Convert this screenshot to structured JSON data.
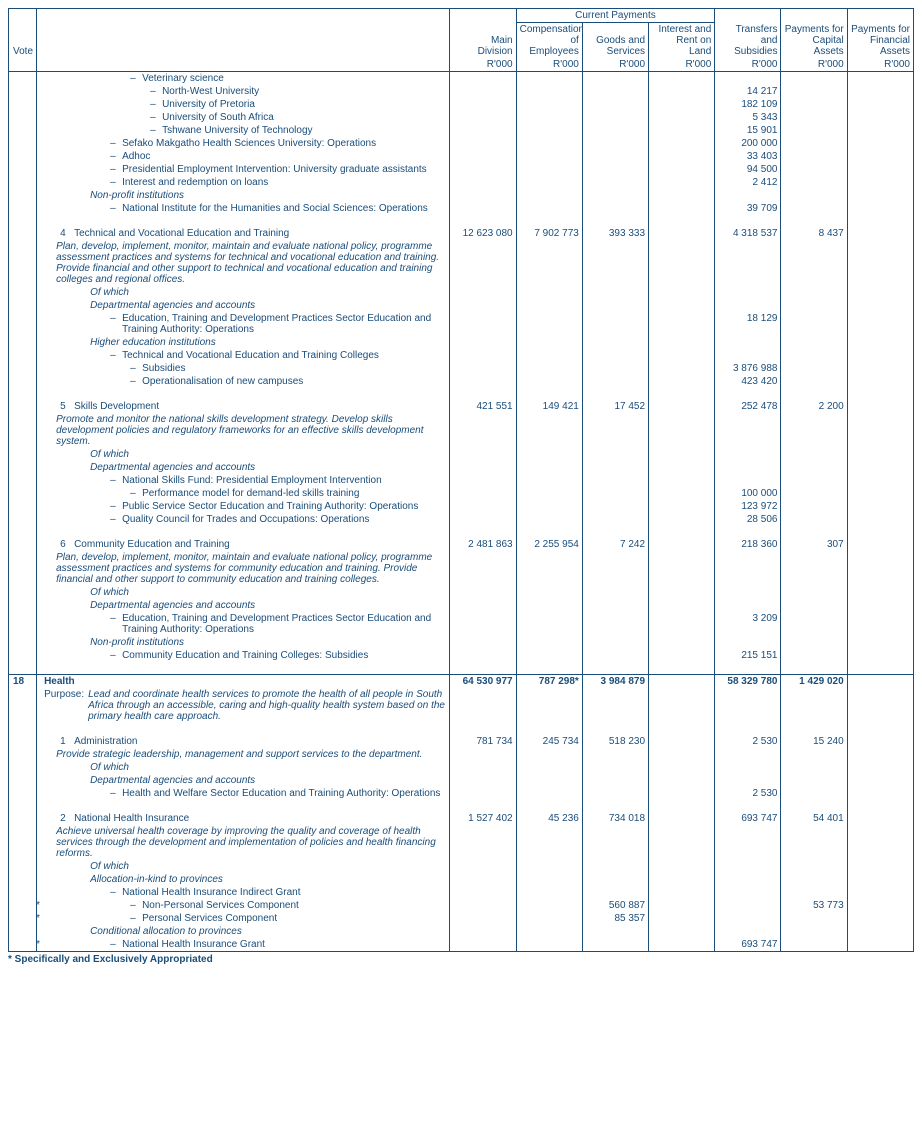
{
  "header": {
    "vote": "Vote",
    "group_current": "Current Payments",
    "main_division": "Main Division",
    "comp_emp": "Compensation of Employees",
    "goods_serv": "Goods and Services",
    "interest_rent": "Interest and Rent on Land",
    "transfers": "Transfers and Subsidies",
    "cap_assets": "Payments for Capital Assets",
    "fin_assets": "Payments for Financial Assets",
    "unit": "R'000"
  },
  "rows": [
    {
      "indent": 5,
      "dash": true,
      "text": "Veterinary science"
    },
    {
      "indent": 6,
      "dash": true,
      "text": "North-West University",
      "transfers": "14 217"
    },
    {
      "indent": 6,
      "dash": true,
      "text": "University of Pretoria",
      "transfers": "182 109"
    },
    {
      "indent": 6,
      "dash": true,
      "text": "University of South Africa",
      "transfers": "5 343"
    },
    {
      "indent": 6,
      "dash": true,
      "text": "Tshwane University of Technology",
      "transfers": "15 901"
    },
    {
      "indent": 4,
      "dash": true,
      "text": "Sefako Makgatho Health Sciences University: Operations",
      "transfers": "200 000"
    },
    {
      "indent": 4,
      "dash": true,
      "text": "Adhoc",
      "transfers": "33 403"
    },
    {
      "indent": 4,
      "dash": true,
      "text": "Presidential Employment Intervention: University graduate assistants",
      "transfers": "94 500"
    },
    {
      "indent": 4,
      "dash": true,
      "text": "Interest and redemption on loans",
      "transfers": "2 412"
    },
    {
      "indent": 3,
      "ital": true,
      "text": "Non-profit institutions"
    },
    {
      "indent": 4,
      "dash": true,
      "text": "National Institute for the Humanities and Social Sciences: Operations",
      "transfers": "39 709"
    },
    {
      "spacer": true
    },
    {
      "indent": 1,
      "prog": "4",
      "text": "Technical and Vocational Education and Training",
      "main": "12 623 080",
      "comp": "7 902 773",
      "goods": "393 333",
      "transfers": "4 318 537",
      "cap": "8 437"
    },
    {
      "indent": 2,
      "ital": true,
      "text": "Plan, develop, implement, monitor, maintain and evaluate national policy, programme assessment practices and systems for technical and vocational education and training. Provide financial and other support to technical and vocational education and training colleges and regional offices."
    },
    {
      "indent": 3,
      "ital": true,
      "text": "Of which"
    },
    {
      "indent": 3,
      "ital": true,
      "text": "Departmental agencies and accounts"
    },
    {
      "indent": 4,
      "dash": true,
      "text": "Education, Training and Development Practices Sector Education and Training Authority: Operations",
      "transfers": "18 129"
    },
    {
      "indent": 3,
      "ital": true,
      "text": "Higher education institutions"
    },
    {
      "indent": 4,
      "dash": true,
      "text": "Technical and Vocational Education and Training Colleges"
    },
    {
      "indent": 5,
      "dash": true,
      "text": "Subsidies",
      "transfers": "3 876 988"
    },
    {
      "indent": 5,
      "dash": true,
      "text": "Operationalisation of new campuses",
      "transfers": "423 420"
    },
    {
      "spacer": true
    },
    {
      "indent": 1,
      "prog": "5",
      "text": "Skills Development",
      "main": "421 551",
      "comp": "149 421",
      "goods": "17 452",
      "transfers": "252 478",
      "cap": "2 200"
    },
    {
      "indent": 2,
      "ital": true,
      "text": "Promote and monitor the national skills development strategy. Develop skills development policies and regulatory frameworks for an effective skills development system."
    },
    {
      "indent": 3,
      "ital": true,
      "text": "Of which"
    },
    {
      "indent": 3,
      "ital": true,
      "text": "Departmental agencies and accounts"
    },
    {
      "indent": 4,
      "dash": true,
      "text": "National Skills Fund: Presidential Employment Intervention"
    },
    {
      "indent": 5,
      "dash": true,
      "text": "Performance model for demand-led skills training",
      "transfers": "100 000"
    },
    {
      "indent": 4,
      "dash": true,
      "text": "Public Service Sector Education and Training Authority: Operations",
      "transfers": "123 972"
    },
    {
      "indent": 4,
      "dash": true,
      "text": "Quality Council for Trades and Occupations: Operations",
      "transfers": "28 506"
    },
    {
      "spacer": true
    },
    {
      "indent": 1,
      "prog": "6",
      "text": "Community Education and Training",
      "main": "2 481 863",
      "comp": "2 255 954",
      "goods": "7 242",
      "transfers": "218 360",
      "cap": "307"
    },
    {
      "indent": 2,
      "ital": true,
      "text": "Plan, develop, implement, monitor, maintain and evaluate national policy, programme assessment practices and systems for community education and training. Provide financial and other support to community education and training colleges."
    },
    {
      "indent": 3,
      "ital": true,
      "text": "Of which"
    },
    {
      "indent": 3,
      "ital": true,
      "text": "Departmental agencies and accounts"
    },
    {
      "indent": 4,
      "dash": true,
      "text": "Education, Training and Development Practices Sector Education and Training Authority: Operations",
      "transfers": "3 209"
    },
    {
      "indent": 3,
      "ital": true,
      "text": "Non-profit institutions"
    },
    {
      "indent": 4,
      "dash": true,
      "text": "Community Education and Training Colleges: Subsidies",
      "transfers": "215 151"
    },
    {
      "spacer": true,
      "sect_end": true
    },
    {
      "vote": "18",
      "indent": 0,
      "bold": true,
      "text": "Health",
      "main": "64 530 977",
      "comp": "787 298*",
      "goods": "3 984 879",
      "transfers": "58 329 780",
      "cap": "1 429 020"
    },
    {
      "indent": 0,
      "purpose_label": "Purpose:",
      "ital": true,
      "text": "Lead and coordinate health services to promote the health of all people in South Africa through an accessible, caring and high-quality health system based on the primary health care approach."
    },
    {
      "spacer": true
    },
    {
      "indent": 1,
      "prog": "1",
      "text": "Administration",
      "main": "781 734",
      "comp": "245 734",
      "goods": "518 230",
      "transfers": "2 530",
      "cap": "15 240"
    },
    {
      "indent": 2,
      "ital": true,
      "text": "Provide strategic leadership, management and support services to the department."
    },
    {
      "indent": 3,
      "ital": true,
      "text": "Of which"
    },
    {
      "indent": 3,
      "ital": true,
      "text": "Departmental agencies and accounts"
    },
    {
      "indent": 4,
      "dash": true,
      "text": "Health and Welfare Sector Education and Training Authority: Operations",
      "transfers": "2 530"
    },
    {
      "spacer": true
    },
    {
      "indent": 1,
      "prog": "2",
      "text": "National Health Insurance",
      "main": "1 527 402",
      "comp": "45 236",
      "goods": "734 018",
      "transfers": "693 747",
      "cap": "54 401"
    },
    {
      "indent": 2,
      "ital": true,
      "text": "Achieve universal health coverage by improving the quality and coverage of health services through the development and implementation of policies and health financing reforms."
    },
    {
      "indent": 3,
      "ital": true,
      "text": "Of which"
    },
    {
      "indent": 3,
      "ital": true,
      "text": "Allocation-in-kind to provinces"
    },
    {
      "indent": 4,
      "dash": true,
      "text": "National Health Insurance Indirect Grant"
    },
    {
      "indent": 5,
      "dash": true,
      "star": true,
      "text": "Non-Personal Services Component",
      "goods": "560 887",
      "cap": "53 773"
    },
    {
      "indent": 5,
      "dash": true,
      "star": true,
      "text": "Personal Services Component",
      "goods": "85 357"
    },
    {
      "indent": 3,
      "ital": true,
      "text": "Conditional allocation to provinces"
    },
    {
      "indent": 4,
      "dash": true,
      "star": true,
      "text": "National Health Insurance Grant",
      "transfers": "693 747",
      "sect_end": true
    }
  ],
  "footnote": "*  Specifically and Exclusively Appropriated"
}
